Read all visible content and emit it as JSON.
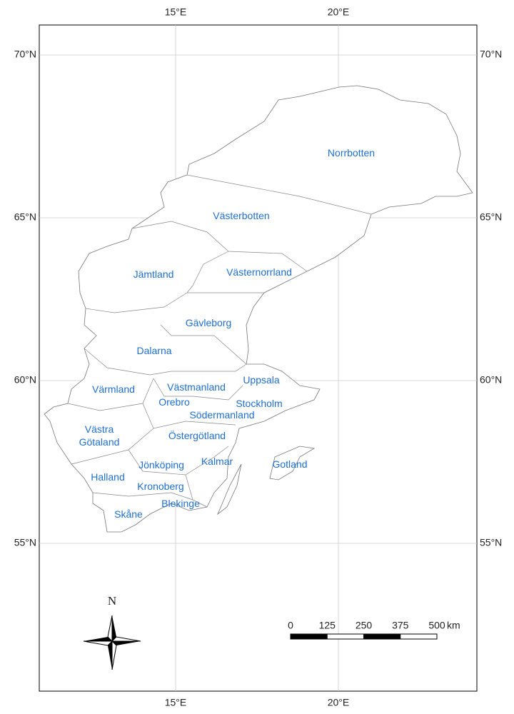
{
  "graticule": {
    "longitudes": [
      {
        "value": 15,
        "label": "15°E"
      },
      {
        "value": 20,
        "label": "20°E"
      }
    ],
    "latitudes": [
      {
        "value": 70,
        "label": "70°N"
      },
      {
        "value": 65,
        "label": "65°N"
      },
      {
        "value": 60,
        "label": "60°N"
      },
      {
        "value": 55,
        "label": "55°N"
      }
    ]
  },
  "regions": [
    "Norrbotten",
    "Västerbotten",
    "Jämtland",
    "Västernorrland",
    "Gävleborg",
    "Dalarna",
    "Uppsala",
    "Värmland",
    "Västmanland",
    "Orebro",
    "Stockholm",
    "Södermanland",
    "Västra Götaland",
    "Östergötland",
    "Jönköping",
    "Kalmar",
    "Gotland",
    "Halland",
    "Kronoberg",
    "Blekinge",
    "Skåne"
  ],
  "north_arrow": "N",
  "scale_bar": {
    "ticks": [
      0,
      125,
      250,
      375,
      500
    ],
    "unit": "km"
  }
}
